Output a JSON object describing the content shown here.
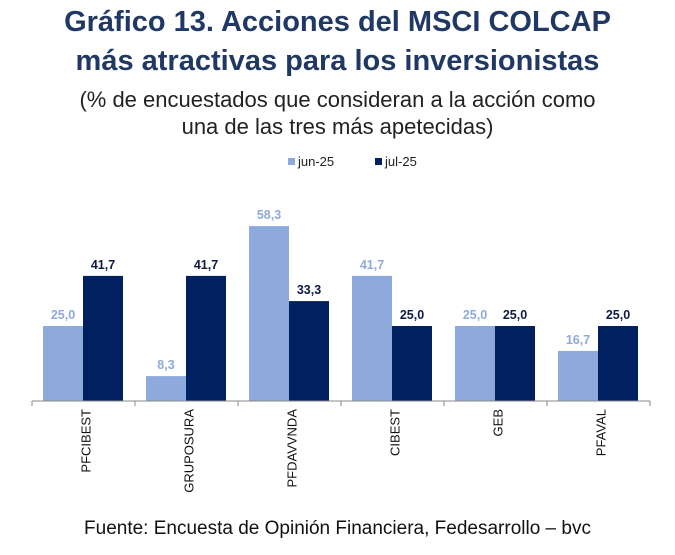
{
  "title_line1": "Gráfico 13. Acciones del MSCI COLCAP",
  "title_line2": "más atractivas para los inversionistas",
  "subtitle_line1": "(% de encuestados que consideran a la acción como",
  "subtitle_line2": "una de las tres más apetecidas)",
  "source": "Fuente: Encuesta de Opinión Financiera, Fedesarrollo – bvc",
  "chart_data": {
    "type": "bar",
    "categories": [
      "PFCIBEST",
      "GRUPOSURA",
      "PFDAVVNDA",
      "CIBEST",
      "GEB",
      "PFAVAL"
    ],
    "series": [
      {
        "name": "jun-25",
        "values": [
          25.0,
          8.3,
          58.3,
          41.7,
          25.0,
          16.7
        ],
        "color": "#8EA9DB"
      },
      {
        "name": "jul-25",
        "values": [
          41.7,
          41.7,
          33.3,
          25.0,
          25.0,
          25.0
        ],
        "color": "#002060"
      }
    ],
    "data_labels": true,
    "grid": false,
    "legend": "top",
    "ylim": [
      0,
      60
    ]
  }
}
